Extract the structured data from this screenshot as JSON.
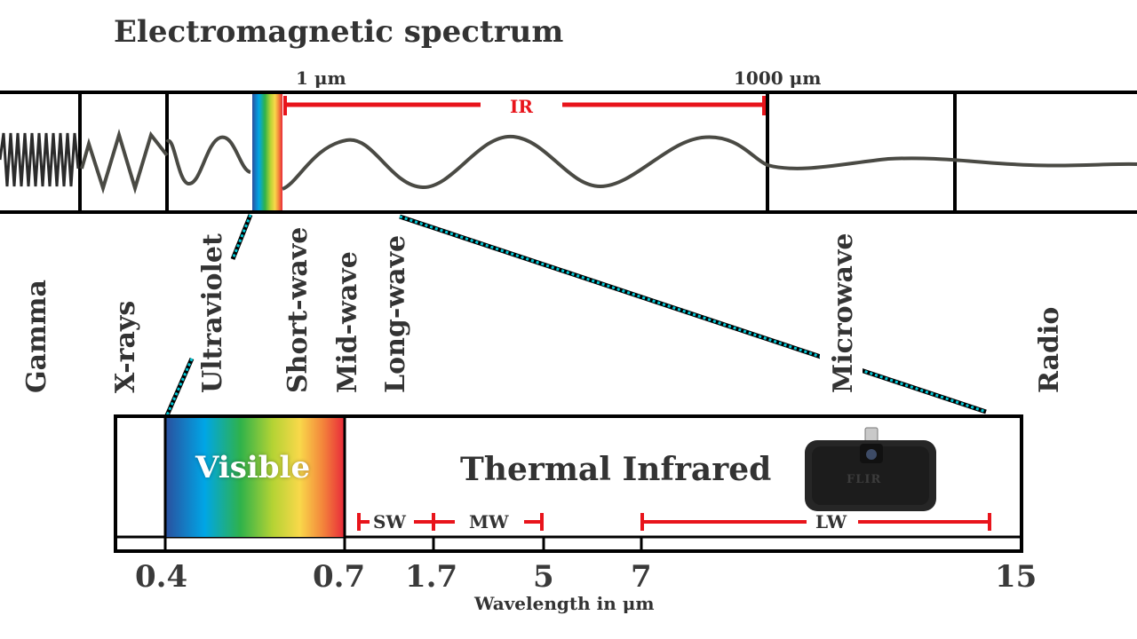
{
  "title": "Electromagnetic spectrum",
  "top_scale": {
    "start_label": "1 μm",
    "end_label": "1000 μm",
    "ir_label": "IR"
  },
  "bands": [
    "Gamma",
    "X-rays",
    "Ultraviolet",
    "Short-wave",
    "Mid-wave",
    "Long-wave",
    "Microwave",
    "Radio"
  ],
  "zoom_panel": {
    "visible_label": "Visible",
    "thermal_label": "Thermal Infrared",
    "device_brand": "FLIR",
    "ranges": [
      {
        "label": "SW",
        "from": 0.7,
        "to": 1.7
      },
      {
        "label": "MW",
        "from": 1.7,
        "to": 5
      },
      {
        "label": "LW",
        "from": 7,
        "to": 15
      }
    ],
    "axis_ticks": [
      "0.4",
      "0.7",
      "1.7",
      "5",
      "7",
      "15"
    ],
    "axis_label": "Wavelength in μm"
  },
  "colors": {
    "ir_range": "#e8141b",
    "zoom_lines": "#00c8d6",
    "wave": "#4a4a44",
    "frame": "#000000"
  }
}
